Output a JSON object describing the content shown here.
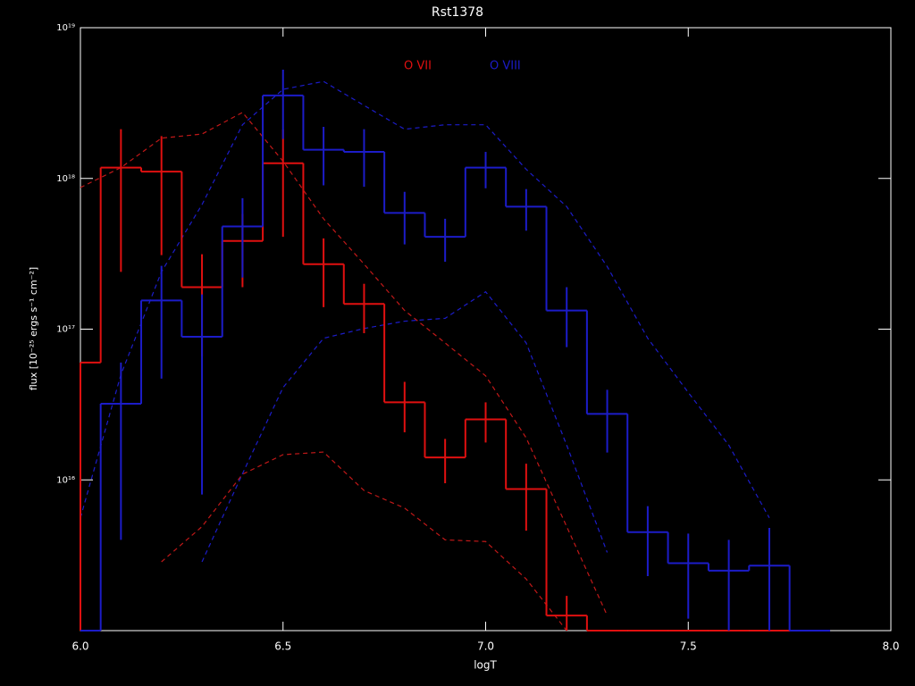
{
  "chart_data": {
    "type": "step",
    "title": "Rst1378",
    "xlabel": "logT",
    "ylabel": "flux [10⁻²⁵ ergs s⁻¹ cm⁻²]",
    "yscale": "log",
    "xlim": [
      6.0,
      8.0
    ],
    "ylim": [
      1000000000000000.0,
      1e+19
    ],
    "xticks": [
      {
        "value": 6.0,
        "label": "6.0"
      },
      {
        "value": 6.5,
        "label": "6.5"
      },
      {
        "value": 7.0,
        "label": "7.0"
      },
      {
        "value": 7.5,
        "label": "7.5"
      },
      {
        "value": 8.0,
        "label": "8.0"
      }
    ],
    "yticks": [
      {
        "value": 1e+16,
        "label": "10¹⁶"
      },
      {
        "value": 1e+17,
        "label": "10¹⁷"
      },
      {
        "value": 1e+18,
        "label": "10¹⁸"
      },
      {
        "value": 1e+19,
        "label": "10¹⁹"
      }
    ],
    "bin_width": 0.1,
    "x": [
      6.0,
      6.1,
      6.2,
      6.3,
      6.4,
      6.5,
      6.6,
      6.7,
      6.8,
      6.9,
      7.0,
      7.1,
      7.2,
      7.3,
      7.4,
      7.5,
      7.6,
      7.7,
      7.8
    ],
    "series": [
      {
        "name": "O VII",
        "color": "#e01010",
        "values": [
          6e+16,
          1.18e+18,
          1.11e+18,
          1.9e+17,
          3.85e+17,
          1.26e+18,
          2.7e+17,
          1.47e+17,
          3.27e+16,
          1.41e+16,
          2.52e+16,
          8700000000000000.0,
          1260000000000000.0,
          0,
          0,
          0,
          0,
          0,
          0
        ],
        "errors": [
          null,
          9.4e+17,
          8e+17,
          1.24e+17,
          1.95e+17,
          8.5e+17,
          1.3e+17,
          5.3e+16,
          1.2e+16,
          4600000000000000.0,
          7500000000000000.0,
          4100000000000000.0,
          440000000000000.0,
          null,
          null,
          null,
          null,
          null,
          null
        ]
      },
      {
        "name": "O VIII",
        "color": "#1c1cc8",
        "values": [
          0,
          3.2e+16,
          1.55e+17,
          8.9e+16,
          4.8e+17,
          3.55e+18,
          1.55e+18,
          1.5e+18,
          5.9e+17,
          4.1e+17,
          1.18e+18,
          6.5e+17,
          1.33e+17,
          2.74e+16,
          4500000000000000.0,
          2800000000000000.0,
          2500000000000000.0,
          2700000000000000.0,
          0
        ],
        "errors": [
          null,
          2.8e+16,
          1.08e+17,
          8.1e+16,
          2.6e+17,
          1.72e+18,
          6.5e+17,
          6.2e+17,
          2.25e+17,
          1.3e+17,
          3.2e+17,
          2e+17,
          5.7e+16,
          1.22e+16,
          2200000000000000.0,
          1600000000000000.0,
          1500000000000000.0,
          2100000000000000.0,
          null
        ]
      }
    ],
    "envelopes": [
      {
        "color": "#c01818",
        "values": [
          8.7e+17,
          1.18e+18,
          1.85e+18,
          1.97e+18,
          2.74e+18,
          1.3e+18,
          5.4e+17,
          2.7e+17,
          1.33e+17,
          8.1e+16,
          4.9e+16,
          1.9e+16,
          4900000000000000.0,
          1260000000000000.0,
          null,
          null,
          null,
          null,
          null
        ]
      },
      {
        "color": "#c01818",
        "values": [
          null,
          null,
          2860000000000000.0,
          4900000000000000.0,
          1.09e+16,
          1.47e+16,
          1.53e+16,
          8500000000000000.0,
          6500000000000000.0,
          4000000000000000.0,
          3900000000000000.0,
          2200000000000000.0,
          1000000000000000.0,
          null,
          null,
          null,
          null,
          null,
          null
        ]
      },
      {
        "color": "#1c1cc8",
        "values": [
          5600000000000000.0,
          5e+16,
          2.4e+17,
          6.7e+17,
          2.27e+18,
          3.9e+18,
          4.4e+18,
          3.05e+18,
          2.12e+18,
          2.27e+18,
          2.27e+18,
          1.15e+18,
          6.5e+17,
          2.6e+17,
          8.7e+16,
          3.8e+16,
          1.7e+16,
          5600000000000000.0,
          null
        ]
      },
      {
        "color": "#1c1cc8",
        "values": [
          null,
          null,
          null,
          2860000000000000.0,
          1.1e+16,
          4.1e+16,
          8.7e+16,
          1.01e+17,
          1.13e+17,
          1.18e+17,
          1.77e+17,
          8.1e+16,
          1.7e+16,
          3300000000000000.0,
          null,
          null,
          null,
          null,
          null
        ]
      }
    ]
  }
}
